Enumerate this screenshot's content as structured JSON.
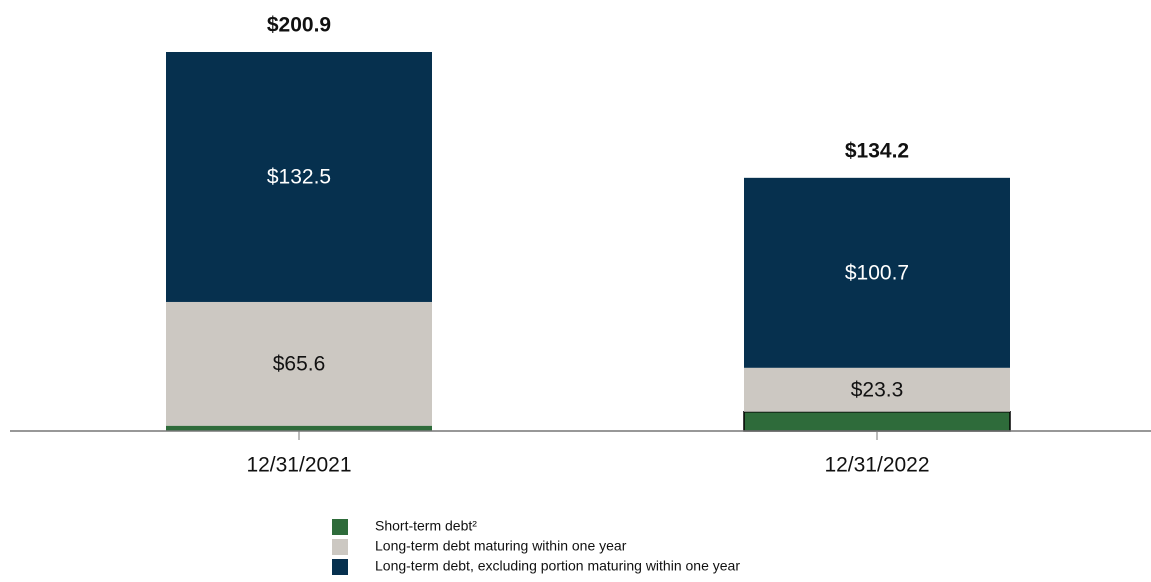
{
  "chart_data": {
    "type": "stacked_bar",
    "categories": [
      "12/31/2021",
      "12/31/2022"
    ],
    "series": [
      {
        "name": "Short-term debt²",
        "color": "#2e6b3a",
        "values": [
          2.8,
          10.2
        ]
      },
      {
        "name": "Long-term debt maturing within one year",
        "color": "#ccc8c2",
        "values": [
          65.6,
          23.3
        ],
        "value_labels": [
          "$65.6",
          "$23.3"
        ]
      },
      {
        "name": "Long-term debt, excluding portion maturing within one year",
        "color": "#06304e",
        "values": [
          132.5,
          100.7
        ],
        "value_labels": [
          "$132.5",
          "$100.7"
        ]
      }
    ],
    "totals": [
      200.9,
      134.2
    ],
    "total_labels": [
      "$200.9",
      "$134.2"
    ],
    "legend": "bottom"
  }
}
